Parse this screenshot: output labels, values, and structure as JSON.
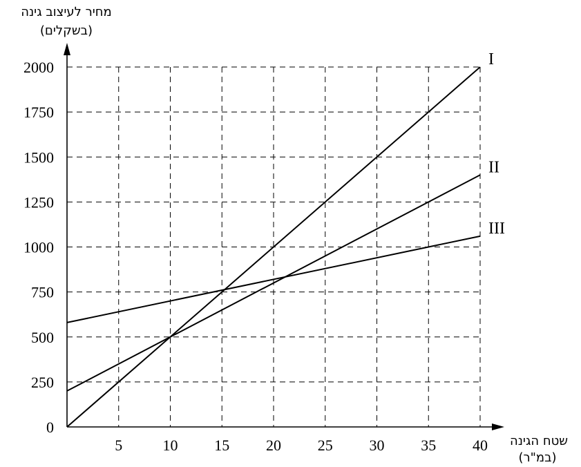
{
  "chart_data": {
    "type": "line",
    "xlabel": [
      "שטח הגינה",
      "(במ\"ר)"
    ],
    "ylabel": [
      "מחיר לעיצוב גינה",
      "(בשקלים)"
    ],
    "xlim": [
      0,
      40
    ],
    "ylim": [
      0,
      2000
    ],
    "x_ticks": [
      5,
      10,
      15,
      20,
      25,
      30,
      35,
      40
    ],
    "y_ticks": [
      0,
      250,
      500,
      750,
      1000,
      1250,
      1500,
      1750,
      2000
    ],
    "grid": true,
    "series": [
      {
        "name": "I",
        "x": [
          0,
          40
        ],
        "y": [
          0,
          2000
        ]
      },
      {
        "name": "II",
        "x": [
          0,
          40
        ],
        "y": [
          200,
          1400
        ]
      },
      {
        "name": "III",
        "x": [
          0,
          40
        ],
        "y": [
          580,
          1060
        ]
      }
    ]
  }
}
